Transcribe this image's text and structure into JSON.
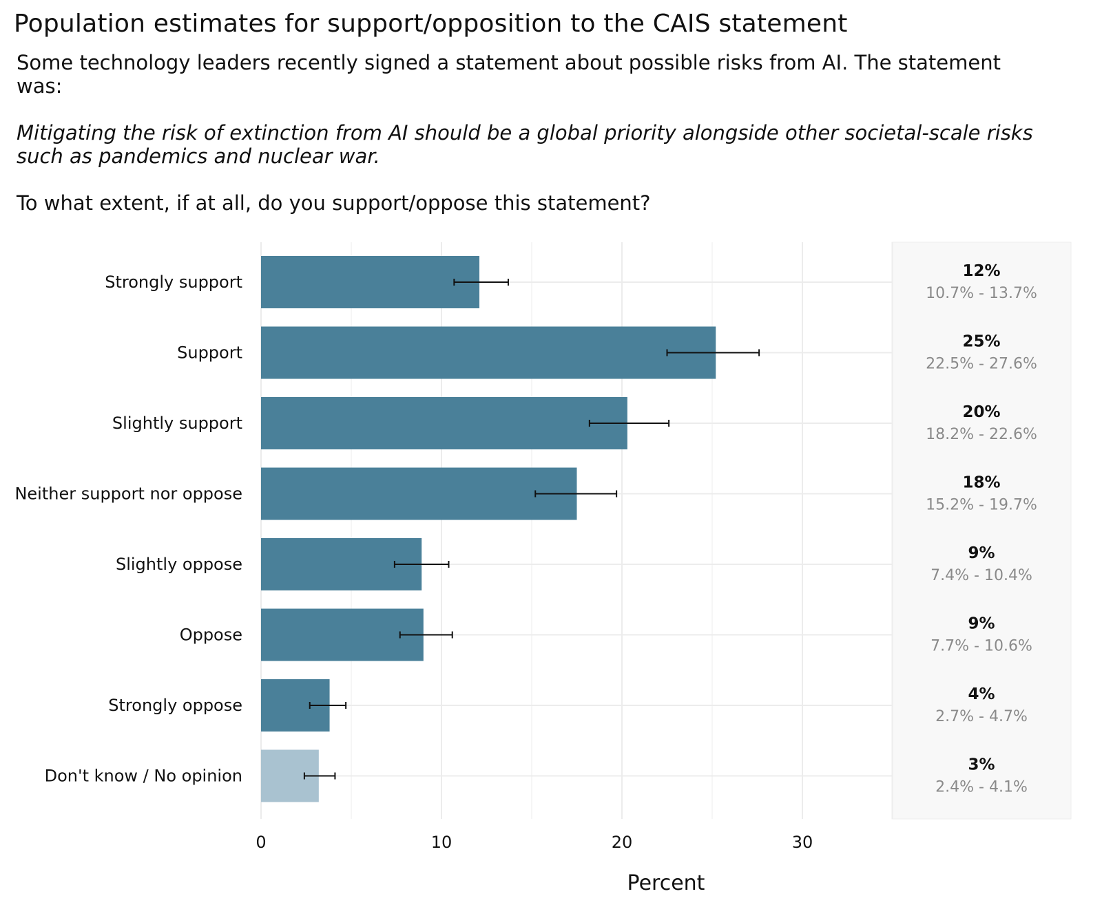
{
  "chart_data": {
    "type": "bar",
    "orientation": "horizontal",
    "title": "Population estimates for support/opposition to the CAIS statement",
    "subtitle": {
      "intro": "Some technology leaders recently signed a statement about possible risks from AI. The statement was:",
      "statement": "Mitigating the risk of extinction from AI should be a global priority alongside other societal-scale risks such as pandemics and nuclear war.",
      "question": "To what extent, if at all, do you support/oppose this statement?"
    },
    "xlabel": "Percent",
    "ylabel": "",
    "xlim": [
      0,
      35
    ],
    "xticks": [
      0,
      10,
      20,
      30
    ],
    "grid": true,
    "legend": "none",
    "categories": [
      "Strongly support",
      "Support",
      "Slightly support",
      "Neither support nor oppose",
      "Slightly oppose",
      "Oppose",
      "Strongly oppose",
      "Don't know / No opinion"
    ],
    "values": [
      12.1,
      25.2,
      20.3,
      17.5,
      8.9,
      9.0,
      3.8,
      3.2
    ],
    "ci_low": [
      10.7,
      22.5,
      18.2,
      15.2,
      7.4,
      7.7,
      2.7,
      2.4
    ],
    "ci_high": [
      13.7,
      27.6,
      22.6,
      19.7,
      10.4,
      10.6,
      4.7,
      4.1
    ],
    "percent_labels": [
      "12%",
      "25%",
      "20%",
      "18%",
      "9%",
      "9%",
      "4%",
      "3%"
    ],
    "ci_labels": [
      "10.7% - 13.7%",
      "22.5% - 27.6%",
      "18.2% - 22.6%",
      "15.2% - 19.7%",
      "7.4% - 10.4%",
      "7.7% - 10.6%",
      "2.7% - 4.7%",
      "2.4% - 4.1%"
    ],
    "colors": {
      "bar": "#4a8099",
      "bar_no_opinion": "#a9c2d0",
      "error_bar": "#111111",
      "label_panel": "#f8f8f8",
      "grid": "#ececec"
    }
  }
}
